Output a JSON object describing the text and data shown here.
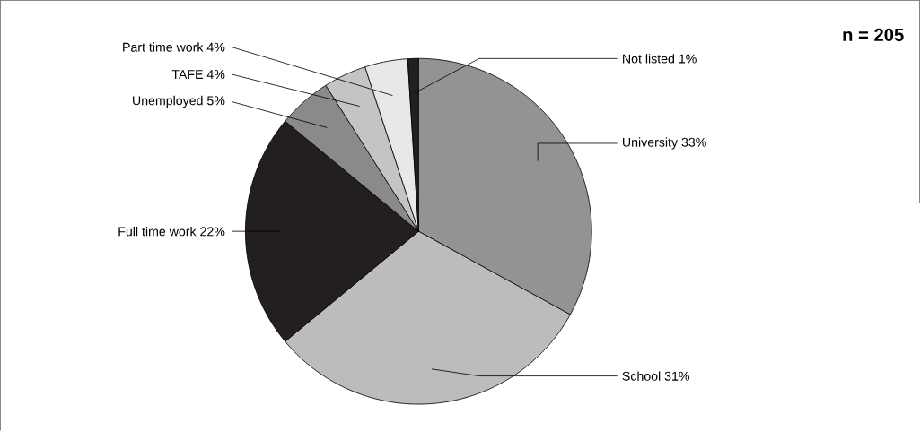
{
  "chart_data": {
    "type": "pie",
    "categories": [
      "University",
      "School",
      "Full time work",
      "Unemployed",
      "TAFE",
      "Part time work",
      "Not listed"
    ],
    "values": [
      33,
      31,
      22,
      5,
      4,
      4,
      1
    ],
    "value_labels": [
      "33%",
      "31%",
      "22%",
      "5%",
      "4%",
      "4%",
      "1%"
    ],
    "colors": [
      "#939393",
      "#bcbcbc",
      "#231f20",
      "#8a8a8a",
      "#c4c4c4",
      "#e8e8e8",
      "#231f20"
    ],
    "annotations": [
      "n = 205"
    ]
  }
}
